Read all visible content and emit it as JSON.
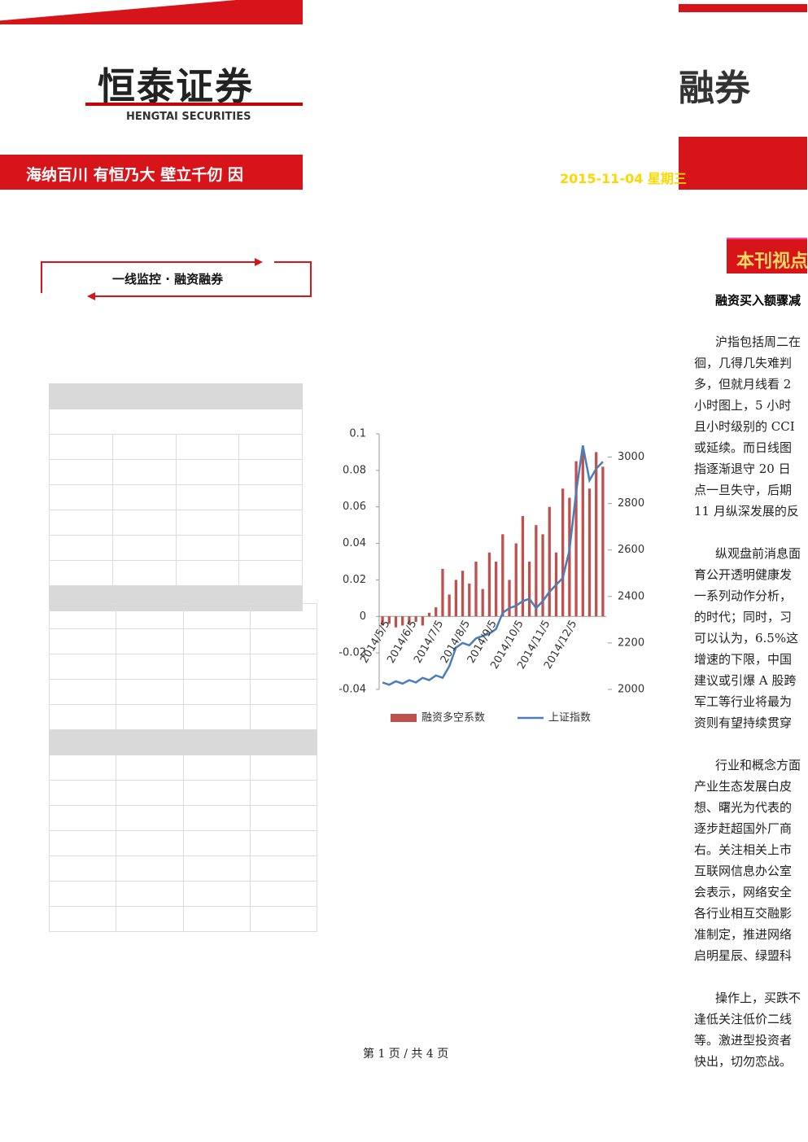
{
  "header": {
    "logo": "恒泰证券",
    "logo_en": "HENGTAI SECURITIES",
    "slogan": "海纳百川 有恒乃大 壁立千仞 因",
    "title_fragment": "融券",
    "date": "2015-11-04 星期三"
  },
  "section_box": "一线监控 · 融资融券",
  "sidebar": {
    "title": "本刊视点",
    "headline": "融资买入额骤减",
    "paragraphs": [
      [
        "沪指包括周二在",
        "徊，几得几失难判",
        "多，但就月线看 2",
        "小时图上，5 小时",
        "且小时级别的 CCI",
        "或延续。而日线图",
        "指逐渐退守 20 日",
        "点一旦失守，后期",
        "11 月纵深发展的反"
      ],
      [
        "纵观盘前消息面",
        "育公开透明健康发",
        "一系列动作分析，",
        "的时代；同时，习",
        "可以认为，6.5%这",
        "增速的下限，中国",
        "建议或引爆 A 股跨",
        "军工等行业将最为",
        "资则有望持续贯穿"
      ],
      [
        "行业和概念方面",
        "产业生态发展白皮",
        "想、曙光为代表的",
        "逐步赶超国外厂商",
        "右。关注相关上市",
        "互联网信息办公室",
        "会表示，网络安全",
        "各行业相互交融影",
        "准制定，推进网络",
        "启明星辰、绿盟科"
      ],
      [
        "操作上，买跌不",
        "逢低关注低价二线",
        "等。激进型投资者",
        "快出，切勿恋战。"
      ]
    ]
  },
  "footer": "第 1 页 / 共 4 页",
  "chart_data": {
    "type": "bar-line",
    "categories": [
      "2014/5/5",
      null,
      null,
      null,
      "2014/6/5",
      null,
      null,
      null,
      "2014/7/5",
      null,
      null,
      null,
      "2014/8/5",
      null,
      null,
      null,
      "2014/9/5",
      null,
      null,
      null,
      "2014/10/5",
      null,
      null,
      null,
      "2014/11/5",
      null,
      null,
      null,
      "2014/12/5",
      null,
      null,
      null,
      null,
      null
    ],
    "series": [
      {
        "name": "融资多空系数",
        "color": "#c0504d",
        "values": [
          -0.005,
          -0.004,
          -0.006,
          -0.005,
          -0.004,
          -0.003,
          -0.005,
          0.002,
          0.005,
          0.026,
          0.012,
          0.02,
          0.025,
          0.018,
          0.03,
          0.015,
          0.035,
          0.03,
          0.045,
          0.02,
          0.04,
          0.055,
          0.03,
          0.05,
          0.045,
          0.06,
          0.035,
          0.07,
          0.065,
          0.085,
          0.09,
          0.07,
          0.09,
          0.082
        ]
      },
      {
        "name": "上证指数",
        "color": "#4a7ebb",
        "axis": "y2",
        "values": [
          2030,
          2020,
          2035,
          2025,
          2040,
          2030,
          2050,
          2040,
          2060,
          2050,
          2100,
          2180,
          2200,
          2190,
          2220,
          2230,
          2240,
          2260,
          2330,
          2350,
          2360,
          2380,
          2390,
          2350,
          2380,
          2420,
          2450,
          2480,
          2600,
          2850,
          3050,
          2900,
          2950,
          2980
        ]
      }
    ],
    "ylim": [
      -0.04,
      0.1
    ],
    "yticks": [
      -0.04,
      -0.02,
      0,
      0.02,
      0.04,
      0.06,
      0.08,
      0.1
    ],
    "y2lim": [
      2000,
      3100
    ],
    "y2ticks": [
      2000,
      2200,
      2400,
      2600,
      2800,
      3000
    ]
  }
}
